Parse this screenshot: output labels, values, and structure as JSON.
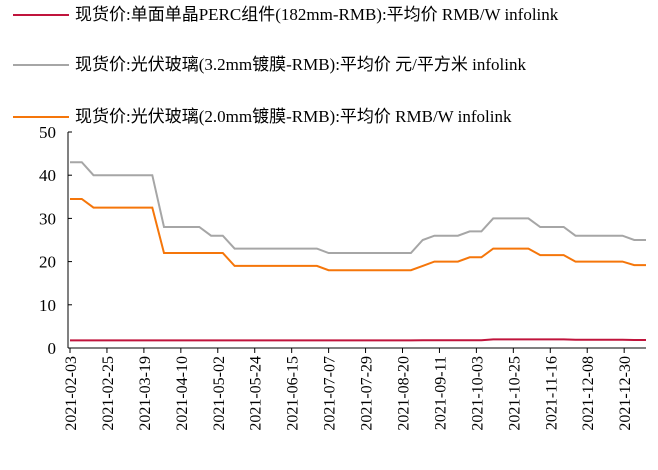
{
  "chart_data": {
    "type": "line",
    "x": [
      "2021-02-03",
      "2021-02-10",
      "2021-02-17",
      "2021-02-24",
      "2021-03-03",
      "2021-03-10",
      "2021-03-17",
      "2021-03-24",
      "2021-03-31",
      "2021-04-07",
      "2021-04-14",
      "2021-04-21",
      "2021-04-28",
      "2021-05-05",
      "2021-05-12",
      "2021-05-19",
      "2021-05-26",
      "2021-06-02",
      "2021-06-09",
      "2021-06-16",
      "2021-06-23",
      "2021-06-30",
      "2021-07-07",
      "2021-07-14",
      "2021-07-21",
      "2021-07-28",
      "2021-08-04",
      "2021-08-11",
      "2021-08-18",
      "2021-08-25",
      "2021-09-01",
      "2021-09-08",
      "2021-09-15",
      "2021-09-22",
      "2021-09-29",
      "2021-10-06",
      "2021-10-13",
      "2021-10-20",
      "2021-10-27",
      "2021-11-03",
      "2021-11-10",
      "2021-11-17",
      "2021-11-24",
      "2021-12-01",
      "2021-12-08",
      "2021-12-15",
      "2021-12-22",
      "2021-12-29",
      "2022-01-05",
      "2022-01-12"
    ],
    "series": [
      {
        "name": "现货价:单面单晶PERC组件(182mm-RMB):平均价 RMB/W infolink",
        "color": "#c0143c",
        "values": [
          1.75,
          1.75,
          1.75,
          1.75,
          1.75,
          1.75,
          1.75,
          1.75,
          1.75,
          1.75,
          1.75,
          1.75,
          1.75,
          1.75,
          1.75,
          1.75,
          1.75,
          1.75,
          1.75,
          1.75,
          1.75,
          1.75,
          1.75,
          1.75,
          1.75,
          1.75,
          1.75,
          1.75,
          1.75,
          1.75,
          1.8,
          1.8,
          1.8,
          1.8,
          1.8,
          1.8,
          2.0,
          2.0,
          2.0,
          2.0,
          2.0,
          2.0,
          2.0,
          1.9,
          1.9,
          1.9,
          1.9,
          1.9,
          1.85,
          1.85
        ]
      },
      {
        "name": "现货价:光伏玻璃(3.2mm镀膜-RMB):平均价 元/平方米 infolink",
        "color": "#a6a6a6",
        "values": [
          43,
          43,
          40,
          40,
          40,
          40,
          40,
          40,
          28,
          28,
          28,
          28,
          26,
          26,
          23,
          23,
          23,
          23,
          23,
          23,
          23,
          23,
          22,
          22,
          22,
          22,
          22,
          22,
          22,
          22,
          25,
          26,
          26,
          26,
          27,
          27,
          30,
          30,
          30,
          30,
          28,
          28,
          28,
          26,
          26,
          26,
          26,
          26,
          25,
          25
        ]
      },
      {
        "name": "现货价:光伏玻璃(2.0mm镀膜-RMB):平均价 RMB/W infolink",
        "color": "#f5760a",
        "values": [
          34.5,
          34.5,
          32.5,
          32.5,
          32.5,
          32.5,
          32.5,
          32.5,
          22,
          22,
          22,
          22,
          22,
          22,
          19,
          19,
          19,
          19,
          19,
          19,
          19,
          19,
          18,
          18,
          18,
          18,
          18,
          18,
          18,
          18,
          19,
          20,
          20,
          20,
          21,
          21,
          23,
          23,
          23,
          23,
          21.5,
          21.5,
          21.5,
          20,
          20,
          20,
          20,
          20,
          19.2,
          19.2
        ]
      }
    ],
    "xlim": [
      "2021-02-03",
      "2022-01-12"
    ],
    "xticks": [
      "2021-02-03",
      "2021-02-25",
      "2021-03-19",
      "2021-04-10",
      "2021-05-02",
      "2021-05-24",
      "2021-06-15",
      "2021-07-07",
      "2021-07-29",
      "2021-08-20",
      "2021-09-11",
      "2021-10-03",
      "2021-10-25",
      "2021-11-16",
      "2021-12-08",
      "2021-12-30"
    ],
    "ylim": [
      0,
      50
    ],
    "yticks": [
      0,
      10,
      20,
      30,
      40,
      50
    ],
    "grid": false
  }
}
